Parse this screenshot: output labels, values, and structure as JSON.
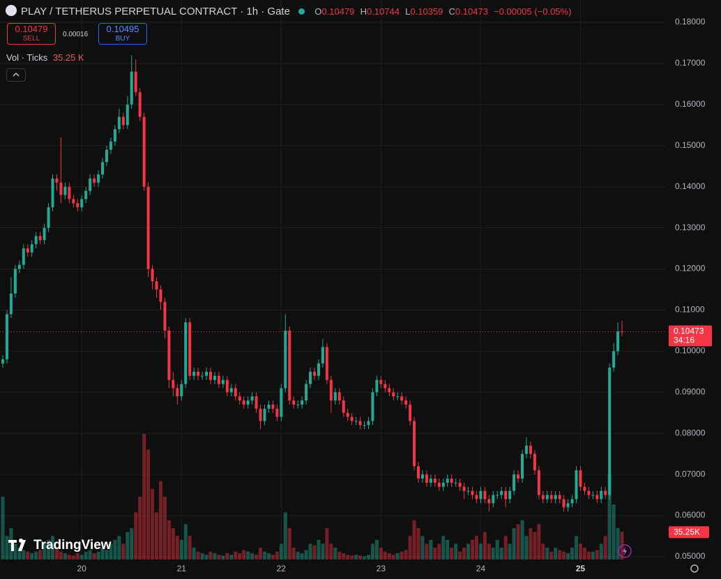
{
  "header": {
    "title": "PLAY / TETHERUS PERPETUAL CONTRACT · 1h · Gate",
    "ohlc_labels": [
      "O",
      "H",
      "L",
      "C"
    ],
    "change": "−0.00005 (−0.05%)",
    "sell_price": "0.10479",
    "sell_label": "SELL",
    "spread": "0.00016",
    "buy_price": "0.10495",
    "buy_label": "BUY",
    "volume_legend": "Vol · Ticks",
    "last_volume_label": "35.25 K",
    "brand": "TradingView"
  },
  "chart_data": {
    "type": "candlestick",
    "categories": [
      null,
      null,
      null,
      null,
      null,
      null,
      null,
      null,
      null,
      null,
      null,
      null,
      null,
      null,
      null,
      null,
      null,
      null,
      null,
      "20",
      null,
      null,
      null,
      null,
      null,
      null,
      null,
      null,
      null,
      null,
      null,
      null,
      null,
      null,
      null,
      null,
      null,
      null,
      null,
      null,
      null,
      null,
      null,
      "21",
      null,
      null,
      null,
      null,
      null,
      null,
      null,
      null,
      null,
      null,
      null,
      null,
      null,
      null,
      null,
      null,
      null,
      null,
      null,
      null,
      null,
      null,
      null,
      "22",
      null,
      null,
      null,
      null,
      null,
      null,
      null,
      null,
      null,
      null,
      null,
      null,
      null,
      null,
      null,
      null,
      null,
      null,
      null,
      null,
      null,
      null,
      null,
      "23",
      null,
      null,
      null,
      null,
      null,
      null,
      null,
      null,
      null,
      null,
      null,
      null,
      null,
      null,
      null,
      null,
      null,
      null,
      null,
      null,
      null,
      null,
      null,
      "24",
      null,
      null,
      null,
      null,
      null,
      null,
      null,
      null,
      null,
      null,
      null,
      null,
      null,
      null,
      null,
      null,
      null,
      null,
      null,
      null,
      null,
      null,
      null,
      "25",
      null,
      null,
      null,
      null,
      null,
      null,
      null,
      null,
      null,
      null
    ],
    "open": [
      0.097,
      0.098,
      0.109,
      0.114,
      0.12,
      0.121,
      0.125,
      0.124,
      0.126,
      0.128,
      0.127,
      0.13,
      0.135,
      0.142,
      0.141,
      0.138,
      0.14,
      0.137,
      0.136,
      0.135,
      0.137,
      0.139,
      0.142,
      0.141,
      0.143,
      0.146,
      0.149,
      0.151,
      0.154,
      0.157,
      0.155,
      0.16,
      0.168,
      0.163,
      0.157,
      0.14,
      0.12,
      0.117,
      0.115,
      0.112,
      0.105,
      0.093,
      0.091,
      0.089,
      0.092,
      0.107,
      0.094,
      0.095,
      0.094,
      0.094,
      0.095,
      0.093,
      0.094,
      0.092,
      0.093,
      0.09,
      0.091,
      0.089,
      0.088,
      0.087,
      0.088,
      0.089,
      0.086,
      0.083,
      0.086,
      0.087,
      0.086,
      0.084,
      0.091,
      0.105,
      0.088,
      0.087,
      0.087,
      0.088,
      0.092,
      0.095,
      0.094,
      0.097,
      0.101,
      0.093,
      0.088,
      0.09,
      0.088,
      0.085,
      0.084,
      0.083,
      0.083,
      0.082,
      0.082,
      0.083,
      0.09,
      0.093,
      0.092,
      0.091,
      0.09,
      0.089,
      0.089,
      0.088,
      0.087,
      0.083,
      0.072,
      0.069,
      0.07,
      0.068,
      0.069,
      0.068,
      0.067,
      0.068,
      0.069,
      0.068,
      0.068,
      0.067,
      0.066,
      0.066,
      0.065,
      0.064,
      0.066,
      0.064,
      0.063,
      0.065,
      0.065,
      0.066,
      0.064,
      0.066,
      0.07,
      0.069,
      0.075,
      0.077,
      0.075,
      0.071,
      0.065,
      0.064,
      0.065,
      0.064,
      0.065,
      0.064,
      0.062,
      0.063,
      0.064,
      0.071,
      0.067,
      0.066,
      0.065,
      0.065,
      0.064,
      0.066,
      0.065,
      0.096,
      0.1,
      0.10479
    ],
    "high": [
      0.099,
      0.11,
      0.118,
      0.121,
      0.122,
      0.126,
      0.126,
      0.127,
      0.129,
      0.129,
      0.131,
      0.136,
      0.143,
      0.143,
      0.152,
      0.141,
      0.141,
      0.138,
      0.137,
      0.138,
      0.14,
      0.143,
      0.143,
      0.144,
      0.147,
      0.15,
      0.152,
      0.155,
      0.159,
      0.158,
      0.162,
      0.172,
      0.171,
      0.164,
      0.158,
      0.141,
      0.121,
      0.118,
      0.116,
      0.113,
      0.106,
      0.095,
      0.092,
      0.093,
      0.108,
      0.108,
      0.096,
      0.096,
      0.095,
      0.096,
      0.096,
      0.095,
      0.095,
      0.094,
      0.094,
      0.092,
      0.092,
      0.09,
      0.089,
      0.089,
      0.09,
      0.09,
      0.087,
      0.087,
      0.088,
      0.088,
      0.087,
      0.092,
      0.109,
      0.106,
      0.089,
      0.088,
      0.089,
      0.093,
      0.096,
      0.096,
      0.098,
      0.103,
      0.102,
      0.094,
      0.091,
      0.091,
      0.089,
      0.086,
      0.085,
      0.084,
      0.084,
      0.083,
      0.084,
      0.091,
      0.094,
      0.094,
      0.093,
      0.092,
      0.091,
      0.09,
      0.09,
      0.089,
      0.088,
      0.084,
      0.073,
      0.071,
      0.071,
      0.07,
      0.07,
      0.069,
      0.069,
      0.07,
      0.07,
      0.069,
      0.069,
      0.068,
      0.067,
      0.067,
      0.066,
      0.067,
      0.067,
      0.065,
      0.066,
      0.066,
      0.067,
      0.067,
      0.067,
      0.071,
      0.071,
      0.076,
      0.079,
      0.078,
      0.076,
      0.072,
      0.066,
      0.066,
      0.066,
      0.066,
      0.066,
      0.065,
      0.064,
      0.065,
      0.072,
      0.072,
      0.068,
      0.067,
      0.066,
      0.066,
      0.067,
      0.067,
      0.097,
      0.102,
      0.107,
      0.10744
    ],
    "low": [
      0.096,
      0.097,
      0.108,
      0.113,
      0.119,
      0.12,
      0.123,
      0.123,
      0.125,
      0.126,
      0.126,
      0.129,
      0.134,
      0.139,
      0.136,
      0.137,
      0.136,
      0.135,
      0.134,
      0.134,
      0.136,
      0.138,
      0.14,
      0.14,
      0.142,
      0.145,
      0.148,
      0.15,
      0.153,
      0.154,
      0.154,
      0.159,
      0.162,
      0.156,
      0.139,
      0.118,
      0.115,
      0.113,
      0.11,
      0.103,
      0.091,
      0.089,
      0.087,
      0.088,
      0.091,
      0.093,
      0.093,
      0.093,
      0.093,
      0.093,
      0.092,
      0.092,
      0.091,
      0.091,
      0.089,
      0.089,
      0.088,
      0.087,
      0.086,
      0.086,
      0.087,
      0.085,
      0.081,
      0.082,
      0.085,
      0.085,
      0.083,
      0.083,
      0.09,
      0.087,
      0.086,
      0.086,
      0.086,
      0.087,
      0.091,
      0.093,
      0.093,
      0.096,
      0.092,
      0.085,
      0.087,
      0.087,
      0.084,
      0.083,
      0.082,
      0.082,
      0.081,
      0.081,
      0.081,
      0.082,
      0.089,
      0.091,
      0.09,
      0.089,
      0.088,
      0.088,
      0.087,
      0.086,
      0.082,
      0.071,
      0.068,
      0.068,
      0.067,
      0.067,
      0.067,
      0.066,
      0.066,
      0.067,
      0.067,
      0.067,
      0.066,
      0.064,
      0.065,
      0.064,
      0.063,
      0.063,
      0.063,
      0.061,
      0.062,
      0.064,
      0.064,
      0.062,
      0.063,
      0.065,
      0.068,
      0.068,
      0.074,
      0.074,
      0.07,
      0.064,
      0.063,
      0.063,
      0.063,
      0.063,
      0.063,
      0.061,
      0.061,
      0.062,
      0.063,
      0.066,
      0.065,
      0.064,
      0.064,
      0.063,
      0.063,
      0.064,
      0.064,
      0.095,
      0.099,
      0.10359
    ],
    "close": [
      0.098,
      0.109,
      0.114,
      0.12,
      0.121,
      0.125,
      0.124,
      0.126,
      0.128,
      0.127,
      0.13,
      0.135,
      0.142,
      0.141,
      0.138,
      0.14,
      0.137,
      0.136,
      0.135,
      0.137,
      0.139,
      0.142,
      0.141,
      0.143,
      0.146,
      0.149,
      0.151,
      0.154,
      0.157,
      0.155,
      0.16,
      0.168,
      0.163,
      0.157,
      0.14,
      0.12,
      0.117,
      0.115,
      0.112,
      0.105,
      0.093,
      0.091,
      0.089,
      0.092,
      0.107,
      0.094,
      0.095,
      0.094,
      0.094,
      0.095,
      0.093,
      0.094,
      0.092,
      0.093,
      0.09,
      0.091,
      0.089,
      0.088,
      0.087,
      0.088,
      0.089,
      0.086,
      0.083,
      0.086,
      0.087,
      0.086,
      0.084,
      0.091,
      0.105,
      0.088,
      0.087,
      0.087,
      0.088,
      0.092,
      0.095,
      0.094,
      0.097,
      0.101,
      0.093,
      0.088,
      0.09,
      0.088,
      0.085,
      0.084,
      0.083,
      0.083,
      0.082,
      0.082,
      0.083,
      0.09,
      0.093,
      0.092,
      0.091,
      0.09,
      0.089,
      0.089,
      0.088,
      0.087,
      0.083,
      0.072,
      0.069,
      0.07,
      0.068,
      0.069,
      0.068,
      0.067,
      0.068,
      0.069,
      0.068,
      0.068,
      0.067,
      0.066,
      0.066,
      0.065,
      0.064,
      0.066,
      0.064,
      0.063,
      0.065,
      0.065,
      0.066,
      0.064,
      0.066,
      0.07,
      0.069,
      0.075,
      0.077,
      0.075,
      0.071,
      0.065,
      0.064,
      0.065,
      0.064,
      0.065,
      0.064,
      0.062,
      0.063,
      0.064,
      0.071,
      0.067,
      0.066,
      0.065,
      0.065,
      0.064,
      0.066,
      0.065,
      0.096,
      0.1,
      0.10479,
      0.10473
    ],
    "volume": [
      80,
      30,
      40,
      20,
      15,
      12,
      10,
      8,
      10,
      12,
      20,
      25,
      30,
      15,
      10,
      8,
      6,
      5,
      8,
      6,
      10,
      12,
      8,
      10,
      15,
      12,
      20,
      25,
      30,
      20,
      35,
      40,
      60,
      80,
      160,
      140,
      90,
      60,
      100,
      80,
      50,
      40,
      30,
      25,
      45,
      30,
      15,
      10,
      8,
      6,
      10,
      8,
      6,
      5,
      8,
      6,
      10,
      8,
      12,
      10,
      8,
      6,
      15,
      10,
      8,
      6,
      10,
      20,
      60,
      40,
      15,
      10,
      8,
      12,
      20,
      18,
      25,
      20,
      40,
      20,
      15,
      10,
      8,
      6,
      5,
      6,
      5,
      4,
      6,
      20,
      25,
      15,
      10,
      8,
      6,
      8,
      10,
      12,
      30,
      50,
      40,
      30,
      20,
      25,
      15,
      20,
      30,
      25,
      15,
      20,
      10,
      15,
      20,
      25,
      30,
      20,
      35,
      20,
      15,
      25,
      15,
      30,
      20,
      40,
      45,
      50,
      30,
      40,
      35,
      45,
      20,
      15,
      10,
      15,
      12,
      10,
      8,
      15,
      30,
      20,
      15,
      10,
      10,
      12,
      20,
      30,
      108,
      70,
      40,
      35.25
    ],
    "up_color": "#22ab94",
    "down_color": "#f23645",
    "ylim": [
      0.05,
      0.18
    ],
    "yticks": [
      {
        "value": 0.05,
        "label": "0.05000"
      },
      {
        "value": 0.06,
        "label": "0.06000"
      },
      {
        "value": 0.07,
        "label": "0.07000"
      },
      {
        "value": 0.08,
        "label": "0.08000"
      },
      {
        "value": 0.09,
        "label": "0.09000"
      },
      {
        "value": 0.1,
        "label": "0.10000"
      },
      {
        "value": 0.11,
        "label": "0.11000"
      },
      {
        "value": 0.12,
        "label": "0.12000"
      },
      {
        "value": 0.13,
        "label": "0.13000"
      },
      {
        "value": 0.14,
        "label": "0.14000"
      },
      {
        "value": 0.15,
        "label": "0.15000"
      },
      {
        "value": 0.16,
        "label": "0.16000"
      },
      {
        "value": 0.17,
        "label": "0.17000"
      },
      {
        "value": 0.18,
        "label": "0.18000"
      }
    ],
    "volume_ylim": [
      0,
      320
    ],
    "grid": true,
    "countdown": "34:16",
    "last_volume_badge": "35.25K"
  }
}
